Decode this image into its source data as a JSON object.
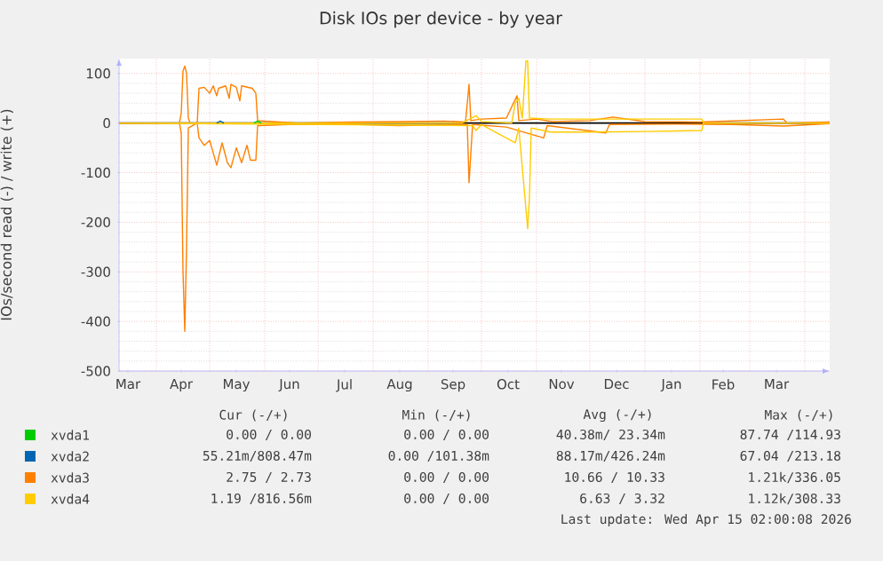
{
  "chart_data": {
    "type": "line",
    "title": "Disk IOs per device - by year",
    "ylabel": "IOs/second read (-) / write (+)",
    "xlim": [
      "2025-03-11",
      "2026-04-15"
    ],
    "ylim": [
      -500,
      130
    ],
    "yticks": [
      -500,
      -400,
      -300,
      -200,
      -100,
      0,
      100
    ],
    "xticks": [
      {
        "value": "2025-03-16",
        "label": "Mar"
      },
      {
        "value": "2025-04-15",
        "label": "Apr"
      },
      {
        "value": "2025-05-16",
        "label": "May"
      },
      {
        "value": "2025-06-15",
        "label": "Jun"
      },
      {
        "value": "2025-07-16",
        "label": "Jul"
      },
      {
        "value": "2025-08-16",
        "label": "Aug"
      },
      {
        "value": "2025-09-15",
        "label": "Sep"
      },
      {
        "value": "2025-10-16",
        "label": "Oct"
      },
      {
        "value": "2025-11-15",
        "label": "Nov"
      },
      {
        "value": "2025-12-16",
        "label": "Dec"
      },
      {
        "value": "2026-01-16",
        "label": "Jan"
      },
      {
        "value": "2026-02-14",
        "label": "Feb"
      },
      {
        "value": "2026-03-16",
        "label": "Mar"
      },
      {
        "value": "2025-04-01",
        "label": null
      },
      {
        "value": "2025-05-01",
        "label": null
      },
      {
        "value": "2025-06-01",
        "label": null
      },
      {
        "value": "2025-07-01",
        "label": null
      },
      {
        "value": "2025-08-01",
        "label": null
      },
      {
        "value": "2025-09-01",
        "label": null
      },
      {
        "value": "2025-10-01",
        "label": null
      },
      {
        "value": "2025-11-01",
        "label": null
      },
      {
        "value": "2025-12-01",
        "label": null
      },
      {
        "value": "2026-01-01",
        "label": null
      },
      {
        "value": "2026-02-01",
        "label": null
      },
      {
        "value": "2026-03-01",
        "label": null
      },
      {
        "value": "2026-04-01",
        "label": null
      }
    ],
    "grid": true,
    "legend": "bottom",
    "ref_lines": [
      {
        "axis": "y",
        "value": 0,
        "color": "#000000"
      }
    ],
    "series": [
      {
        "name": "xvda1",
        "color": "#00cc00",
        "x": [
          "2025-05-26",
          "2025-05-28",
          "2025-05-30"
        ],
        "values": [
          0,
          4,
          0
        ]
      },
      {
        "name": "xvda2",
        "color": "#0066b3",
        "x": [
          "2025-05-05",
          "2025-05-07",
          "2025-05-09"
        ],
        "values": [
          0,
          4,
          0
        ]
      },
      {
        "name": "xvda3",
        "color": "#ff8000",
        "x": [
          "2025-03-11",
          "2025-04-14",
          "2025-04-15",
          "2025-04-16",
          "2025-04-17",
          "2025-04-18",
          "2025-04-19",
          "2025-04-20",
          "2025-04-24",
          "2025-04-25",
          "2025-04-28",
          "2025-05-01",
          "2025-05-03",
          "2025-05-05",
          "2025-05-06",
          "2025-05-10",
          "2025-05-12",
          "2025-05-13",
          "2025-05-16",
          "2025-05-18",
          "2025-05-19",
          "2025-05-25",
          "2025-05-27",
          "2025-05-28",
          "2025-06-05",
          "2025-06-20",
          "2025-07-20",
          "2025-08-20",
          "2025-09-10",
          "2025-09-22",
          "2025-09-24",
          "2025-09-25",
          "2025-10-01",
          "2025-10-15",
          "2025-10-21",
          "2025-10-22",
          "2025-11-01",
          "2025-11-10",
          "2025-12-01",
          "2025-12-14",
          "2026-01-01",
          "2026-02-01",
          "2026-03-20",
          "2026-03-22",
          "2026-04-15"
        ],
        "values": [
          0,
          0,
          20,
          105,
          115,
          100,
          10,
          0,
          0,
          70,
          72,
          60,
          75,
          55,
          70,
          75,
          50,
          78,
          72,
          45,
          75,
          70,
          60,
          5,
          3,
          0,
          2,
          3,
          4,
          2,
          78,
          5,
          8,
          10,
          55,
          5,
          8,
          3,
          5,
          12,
          3,
          2,
          8,
          0,
          2
        ]
      },
      {
        "color": "#ff8000",
        "x": [
          "2025-03-11",
          "2025-04-14",
          "2025-04-15",
          "2025-04-16",
          "2025-04-17",
          "2025-04-18",
          "2025-04-19",
          "2025-04-24",
          "2025-04-25",
          "2025-04-28",
          "2025-05-01",
          "2025-05-03",
          "2025-05-05",
          "2025-05-08",
          "2025-05-11",
          "2025-05-13",
          "2025-05-16",
          "2025-05-19",
          "2025-05-22",
          "2025-05-24",
          "2025-05-27",
          "2025-05-28",
          "2025-06-15",
          "2025-07-15",
          "2025-08-15",
          "2025-09-23",
          "2025-09-24",
          "2025-09-26",
          "2025-10-15",
          "2025-11-05",
          "2025-11-07",
          "2025-12-10",
          "2025-12-12",
          "2026-01-15",
          "2026-02-20",
          "2026-03-20",
          "2026-04-15"
        ],
        "values": [
          0,
          0,
          -20,
          -300,
          -420,
          -250,
          -10,
          0,
          -30,
          -45,
          -35,
          -60,
          -85,
          -40,
          -80,
          -90,
          -50,
          -80,
          -45,
          -75,
          -75,
          -5,
          -3,
          -2,
          -5,
          -3,
          -120,
          -3,
          -8,
          -30,
          -5,
          -20,
          -3,
          -2,
          -3,
          -6,
          -1
        ]
      },
      {
        "name": "xvda4",
        "color": "#ffcc00",
        "x": [
          "2025-03-11",
          "2025-09-20",
          "2025-09-28",
          "2025-10-01",
          "2025-10-18",
          "2025-10-20",
          "2025-10-22",
          "2025-10-24",
          "2025-10-26",
          "2025-10-27",
          "2025-10-28",
          "2025-11-09",
          "2025-12-01",
          "2026-01-01",
          "2026-02-02",
          "2026-02-03",
          "2026-04-15"
        ],
        "values": [
          0,
          0,
          15,
          3,
          0,
          40,
          50,
          10,
          125,
          125,
          10,
          8,
          8,
          8,
          8,
          0,
          0
        ]
      },
      {
        "color": "#ffcc00",
        "x": [
          "2025-03-11",
          "2025-09-26",
          "2025-09-28",
          "2025-10-01",
          "2025-10-20",
          "2025-10-22",
          "2025-10-27",
          "2025-10-28",
          "2025-10-29",
          "2025-11-09",
          "2025-12-01",
          "2026-01-01",
          "2026-02-02",
          "2026-02-03",
          "2026-04-15"
        ],
        "values": [
          0,
          -5,
          -15,
          -3,
          -40,
          -10,
          -213,
          -150,
          -10,
          -18,
          -18,
          -17,
          -15,
          0,
          0
        ]
      }
    ],
    "annotations": [
      "Cur (-/+)",
      "Min (-/+)",
      "Avg (-/+)",
      "Max (-/+)",
      "0.00 /  0.00",
      "0.00 /  0.00",
      "40.38m/ 23.34m",
      "87.74 /114.93",
      "55.21m/808.47m",
      "0.00 /101.38m",
      "88.17m/426.24m",
      "67.04 /213.18",
      "2.75 /  2.73",
      "0.00 /  0.00",
      "10.66 / 10.33",
      "1.21k/336.05",
      "1.19 /816.56m",
      "0.00 /  0.00",
      "6.63 /  3.32",
      "1.12k/308.33",
      "Last update: Wed Apr 15 02:00:08 2026"
    ]
  }
}
